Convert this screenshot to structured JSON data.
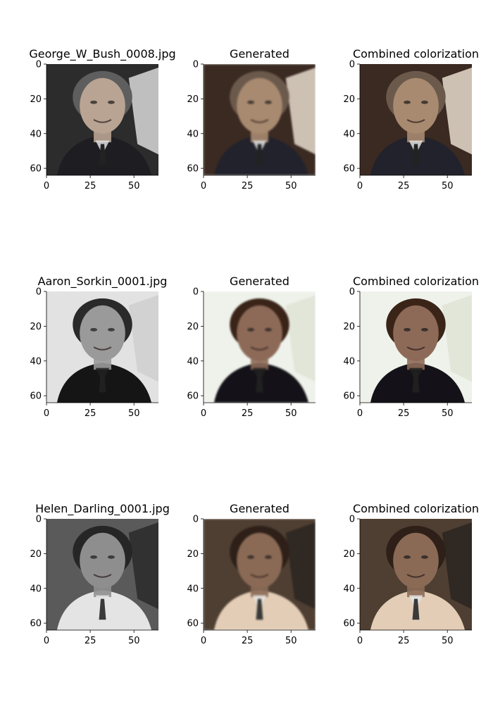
{
  "chart_data": [
    {
      "type": "image",
      "title": "George_W_Bush_0008.jpg",
      "variant": "grayscale",
      "subject": 0,
      "xticks": [
        0,
        25,
        50
      ],
      "yticks": [
        0,
        20,
        40,
        60
      ],
      "xlim": [
        0,
        64
      ],
      "ylim": [
        64,
        0
      ]
    },
    {
      "type": "image",
      "title": "Generated",
      "variant": "generated",
      "subject": 0,
      "xticks": [
        0,
        25,
        50
      ],
      "yticks": [
        0,
        20,
        40,
        60
      ],
      "xlim": [
        0,
        64
      ],
      "ylim": [
        64,
        0
      ]
    },
    {
      "type": "image",
      "title": "Combined colorization",
      "variant": "combined",
      "subject": 0,
      "xticks": [
        0,
        25,
        50
      ],
      "yticks": [
        0,
        20,
        40,
        60
      ],
      "xlim": [
        0,
        64
      ],
      "ylim": [
        64,
        0
      ]
    },
    {
      "type": "image",
      "title": "Aaron_Sorkin_0001.jpg",
      "variant": "grayscale",
      "subject": 1,
      "xticks": [
        0,
        25,
        50
      ],
      "yticks": [
        0,
        20,
        40,
        60
      ],
      "xlim": [
        0,
        64
      ],
      "ylim": [
        64,
        0
      ]
    },
    {
      "type": "image",
      "title": "Generated",
      "variant": "generated",
      "subject": 1,
      "xticks": [
        0,
        25,
        50
      ],
      "yticks": [
        0,
        20,
        40,
        60
      ],
      "xlim": [
        0,
        64
      ],
      "ylim": [
        64,
        0
      ]
    },
    {
      "type": "image",
      "title": "Combined colorization",
      "variant": "combined",
      "subject": 1,
      "xticks": [
        0,
        25,
        50
      ],
      "yticks": [
        0,
        20,
        40,
        60
      ],
      "xlim": [
        0,
        64
      ],
      "ylim": [
        64,
        0
      ]
    },
    {
      "type": "image",
      "title": "Helen_Darling_0001.jpg",
      "variant": "grayscale",
      "subject": 2,
      "xticks": [
        0,
        25,
        50
      ],
      "yticks": [
        0,
        20,
        40,
        60
      ],
      "xlim": [
        0,
        64
      ],
      "ylim": [
        64,
        0
      ]
    },
    {
      "type": "image",
      "title": "Generated",
      "variant": "generated",
      "subject": 2,
      "xticks": [
        0,
        25,
        50
      ],
      "yticks": [
        0,
        20,
        40,
        60
      ],
      "xlim": [
        0,
        64
      ],
      "ylim": [
        64,
        0
      ]
    },
    {
      "type": "image",
      "title": "Combined colorization",
      "variant": "combined",
      "subject": 2,
      "xticks": [
        0,
        25,
        50
      ],
      "yticks": [
        0,
        20,
        40,
        60
      ],
      "xlim": [
        0,
        64
      ],
      "ylim": [
        64,
        0
      ]
    }
  ],
  "subjects": [
    {
      "background": "#2c2c2c",
      "background_tint": "#3a2a22",
      "skin": "#b9a493",
      "skin_tint": "#a88a70",
      "hair": "#5e5e5e",
      "hair_tint": "#6b5a4c",
      "clothing": "#1e1e22",
      "clothing_tint": "#22222c",
      "accent": "#d9d9d9",
      "accent_tint": "#e8dccd",
      "shirt": "#e0e0e0",
      "tie": "#222222"
    },
    {
      "background": "#e2e2e2",
      "background_tint": "#eef2ea",
      "skin": "#9a9a9a",
      "skin_tint": "#8d6a58",
      "hair": "#2a2a2a",
      "hair_tint": "#3a2418",
      "clothing": "#151515",
      "clothing_tint": "#141218",
      "accent": "#cfcfcf",
      "accent_tint": "#dfe4d6",
      "shirt": "#202020",
      "tie": "#202020"
    },
    {
      "background": "#5a5a5a",
      "background_tint": "#4e3f32",
      "skin": "#8e8e8e",
      "skin_tint": "#8a6a55",
      "hair": "#262626",
      "hair_tint": "#2e2018",
      "clothing": "#e4e4e4",
      "clothing_tint": "#e3cdb6",
      "accent": "#2a2a2a",
      "accent_tint": "#2c2420",
      "shirt": "#e4e4e4",
      "tie": "#3a3a3a"
    }
  ]
}
